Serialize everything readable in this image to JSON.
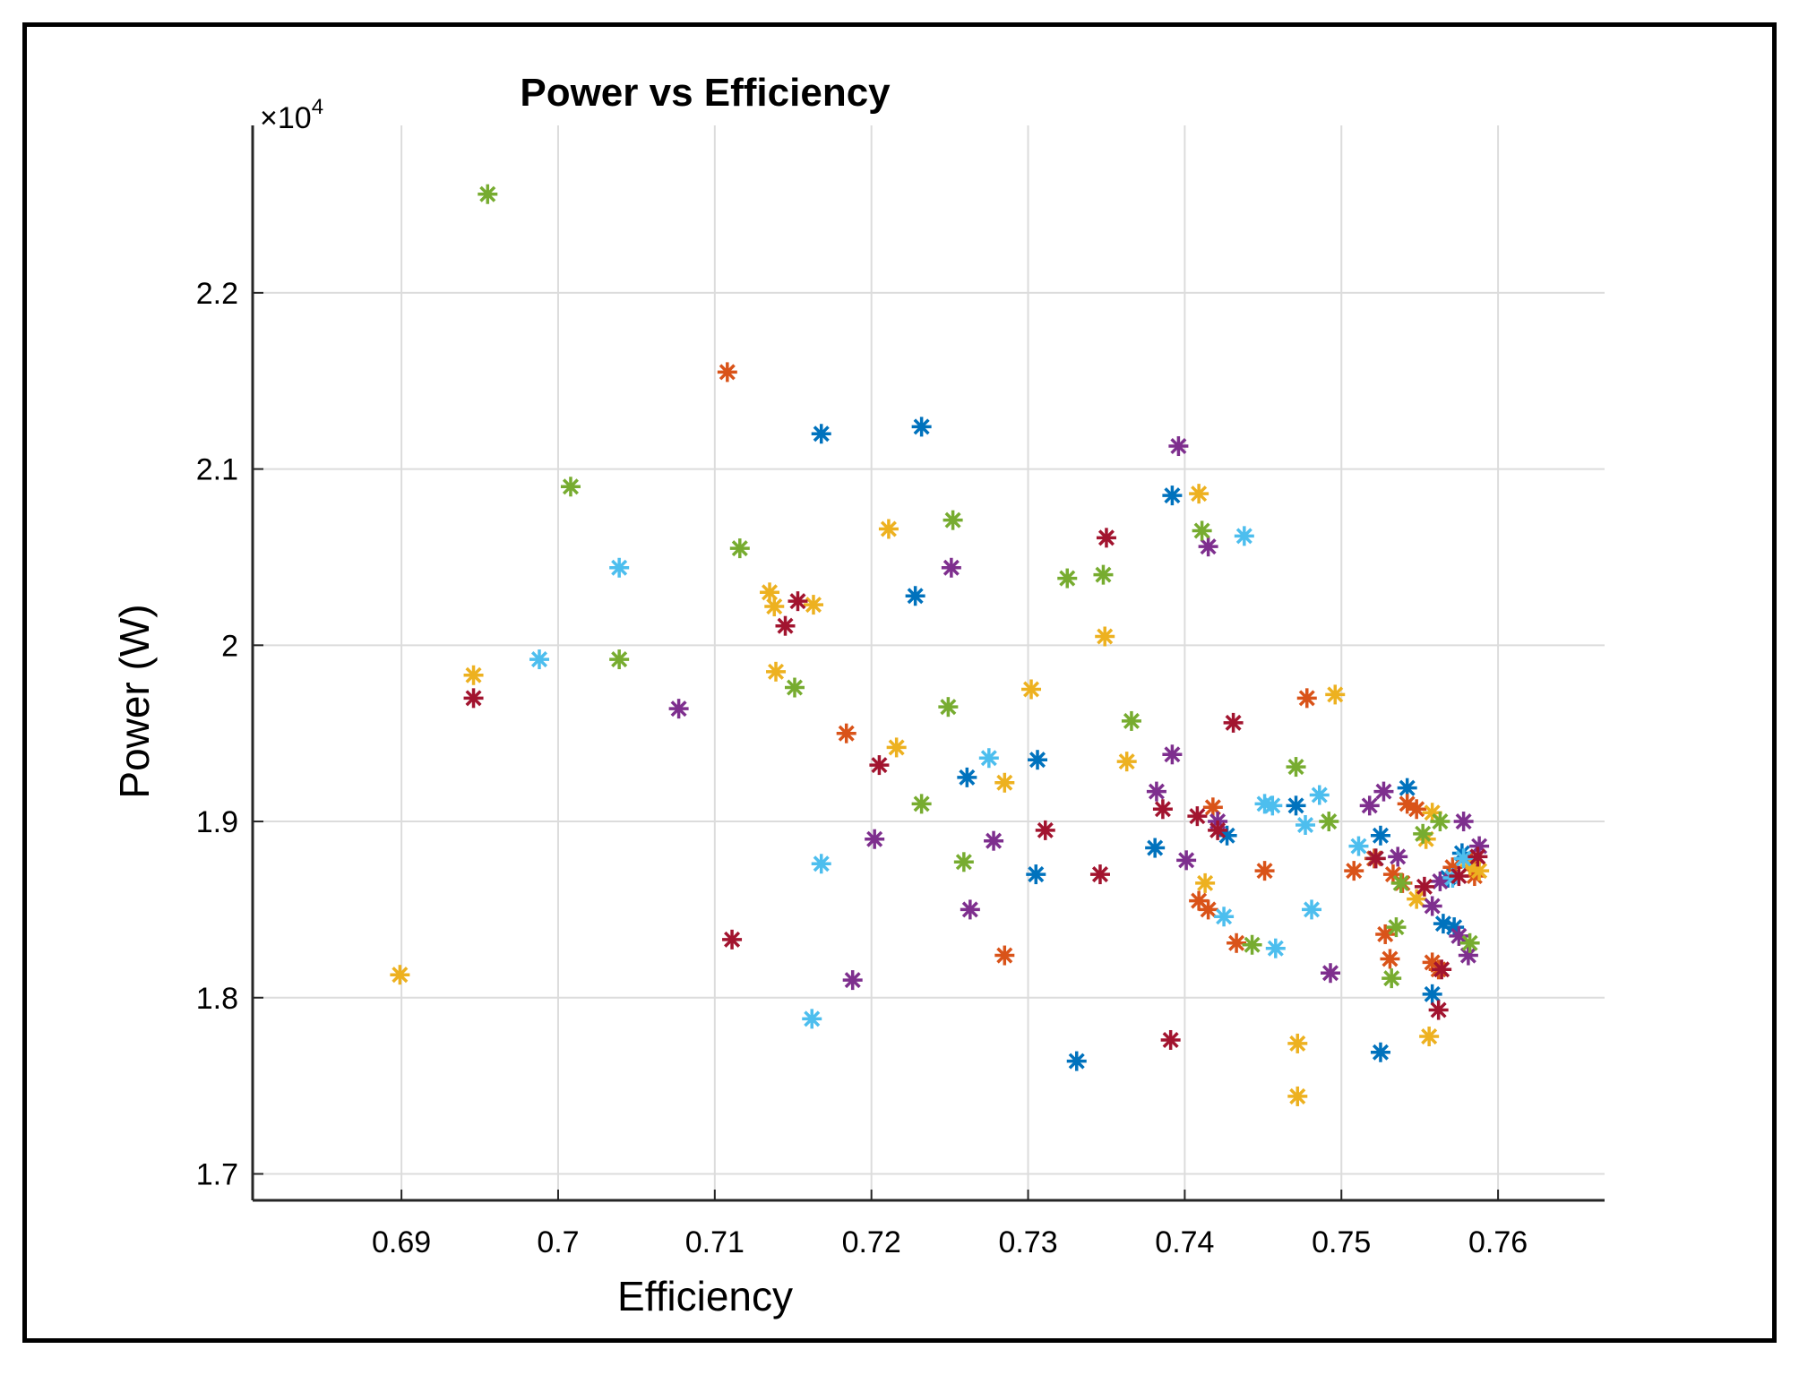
{
  "chart_data": {
    "type": "scatter",
    "title": "Power vs Efficiency",
    "xlabel": "Efficiency",
    "ylabel": "Power (W)",
    "xlim": [
      0.6805,
      0.7668
    ],
    "ylim": [
      16850,
      22950
    ],
    "xticks": [
      0.69,
      0.7,
      0.71,
      0.72,
      0.73,
      0.74,
      0.75,
      0.76
    ],
    "xtick_labels": [
      "0.69",
      "0.7",
      "0.71",
      "0.72",
      "0.73",
      "0.74",
      "0.75",
      "0.76"
    ],
    "yticks": [
      17000,
      18000,
      19000,
      20000,
      21000,
      22000
    ],
    "ytick_labels": [
      "1.7",
      "1.8",
      "1.9",
      "2",
      "2.1",
      "2.2"
    ],
    "y_exponent_label": "×10",
    "y_exponent_power": "4",
    "grid": true,
    "marker": "asterisk",
    "series": [
      {
        "name": "blue",
        "color": "#0072BD",
        "points": [
          [
            0.7168,
            21200
          ],
          [
            0.7232,
            21240
          ],
          [
            0.7228,
            20280
          ],
          [
            0.7261,
            19250
          ],
          [
            0.7306,
            19350
          ],
          [
            0.7305,
            18700
          ],
          [
            0.7331,
            17640
          ],
          [
            0.7381,
            18850
          ],
          [
            0.7392,
            20850
          ],
          [
            0.7427,
            18920
          ],
          [
            0.7471,
            19090
          ],
          [
            0.7525,
            18920
          ],
          [
            0.7542,
            19190
          ],
          [
            0.7568,
            18680
          ],
          [
            0.7558,
            18020
          ],
          [
            0.7565,
            18420
          ],
          [
            0.7525,
            17690
          ],
          [
            0.7577,
            18820
          ],
          [
            0.7572,
            18400
          ]
        ]
      },
      {
        "name": "orange",
        "color": "#D95319",
        "points": [
          [
            0.7108,
            21550
          ],
          [
            0.7184,
            19500
          ],
          [
            0.7285,
            18240
          ],
          [
            0.7409,
            18550
          ],
          [
            0.7418,
            19080
          ],
          [
            0.7415,
            18500
          ],
          [
            0.7433,
            18310
          ],
          [
            0.7451,
            18720
          ],
          [
            0.7478,
            19700
          ],
          [
            0.7508,
            18720
          ],
          [
            0.7521,
            18790
          ],
          [
            0.7528,
            18360
          ],
          [
            0.7531,
            18220
          ],
          [
            0.7533,
            18700
          ],
          [
            0.7539,
            18650
          ],
          [
            0.7542,
            19100
          ],
          [
            0.7548,
            19070
          ],
          [
            0.7558,
            18200
          ],
          [
            0.7562,
            18160
          ],
          [
            0.7571,
            18740
          ],
          [
            0.7583,
            18770
          ],
          [
            0.7585,
            18690
          ]
        ]
      },
      {
        "name": "yellow",
        "color": "#EDB120",
        "points": [
          [
            0.6899,
            18130
          ],
          [
            0.6946,
            19830
          ],
          [
            0.7135,
            20300
          ],
          [
            0.7138,
            20220
          ],
          [
            0.7139,
            19850
          ],
          [
            0.7163,
            20230
          ],
          [
            0.7211,
            20660
          ],
          [
            0.7216,
            19420
          ],
          [
            0.7285,
            19220
          ],
          [
            0.7302,
            19750
          ],
          [
            0.7349,
            20050
          ],
          [
            0.7363,
            19340
          ],
          [
            0.7409,
            20860
          ],
          [
            0.7413,
            18650
          ],
          [
            0.7472,
            17740
          ],
          [
            0.7472,
            17440
          ],
          [
            0.7496,
            19720
          ],
          [
            0.7548,
            18560
          ],
          [
            0.7554,
            18900
          ],
          [
            0.7556,
            17780
          ],
          [
            0.7558,
            19050
          ],
          [
            0.7582,
            18750
          ],
          [
            0.7588,
            18720
          ]
        ]
      },
      {
        "name": "purple",
        "color": "#7E2F8E",
        "points": [
          [
            0.7077,
            19640
          ],
          [
            0.7188,
            18100
          ],
          [
            0.7202,
            18900
          ],
          [
            0.7251,
            20440
          ],
          [
            0.7263,
            18500
          ],
          [
            0.7278,
            18890
          ],
          [
            0.7382,
            19170
          ],
          [
            0.7392,
            19380
          ],
          [
            0.7396,
            21130
          ],
          [
            0.7401,
            18780
          ],
          [
            0.7415,
            20560
          ],
          [
            0.7421,
            19000
          ],
          [
            0.7493,
            18140
          ],
          [
            0.7518,
            19090
          ],
          [
            0.7527,
            19170
          ],
          [
            0.7536,
            18800
          ],
          [
            0.7558,
            18520
          ],
          [
            0.7563,
            18660
          ],
          [
            0.7575,
            18350
          ],
          [
            0.7578,
            19000
          ],
          [
            0.7581,
            18240
          ],
          [
            0.7588,
            18860
          ]
        ]
      },
      {
        "name": "green",
        "color": "#77AC30",
        "points": [
          [
            0.6955,
            22560
          ],
          [
            0.7008,
            20900
          ],
          [
            0.7039,
            19920
          ],
          [
            0.7116,
            20550
          ],
          [
            0.7151,
            19760
          ],
          [
            0.7232,
            19100
          ],
          [
            0.7252,
            20710
          ],
          [
            0.7249,
            19650
          ],
          [
            0.7259,
            18770
          ],
          [
            0.7325,
            20380
          ],
          [
            0.7348,
            20400
          ],
          [
            0.7366,
            19570
          ],
          [
            0.7411,
            20650
          ],
          [
            0.7443,
            18300
          ],
          [
            0.7471,
            19310
          ],
          [
            0.7492,
            19000
          ],
          [
            0.7535,
            18400
          ],
          [
            0.7538,
            18650
          ],
          [
            0.7532,
            18110
          ],
          [
            0.7552,
            18930
          ],
          [
            0.7563,
            19000
          ],
          [
            0.7582,
            18310
          ]
        ]
      },
      {
        "name": "light-blue",
        "color": "#4DBEEE",
        "points": [
          [
            0.6988,
            19920
          ],
          [
            0.7039,
            20440
          ],
          [
            0.7162,
            17880
          ],
          [
            0.7168,
            18760
          ],
          [
            0.7275,
            19360
          ],
          [
            0.7425,
            18460
          ],
          [
            0.7438,
            20620
          ],
          [
            0.7451,
            19100
          ],
          [
            0.7456,
            19090
          ],
          [
            0.7458,
            18280
          ],
          [
            0.7477,
            18980
          ],
          [
            0.7481,
            18500
          ],
          [
            0.7486,
            19150
          ],
          [
            0.7511,
            18860
          ],
          [
            0.7522,
            18790
          ],
          [
            0.7571,
            18680
          ],
          [
            0.7578,
            18790
          ]
        ]
      },
      {
        "name": "dark-red",
        "color": "#A2142F",
        "points": [
          [
            0.6946,
            19700
          ],
          [
            0.7111,
            18330
          ],
          [
            0.7145,
            20110
          ],
          [
            0.7153,
            20250
          ],
          [
            0.7205,
            19320
          ],
          [
            0.7311,
            18950
          ],
          [
            0.7346,
            18700
          ],
          [
            0.735,
            20610
          ],
          [
            0.7391,
            17760
          ],
          [
            0.7386,
            19070
          ],
          [
            0.7408,
            19030
          ],
          [
            0.7421,
            18950
          ],
          [
            0.7431,
            19560
          ],
          [
            0.7522,
            18790
          ],
          [
            0.7553,
            18630
          ],
          [
            0.7562,
            17930
          ],
          [
            0.7564,
            18160
          ],
          [
            0.7575,
            18690
          ],
          [
            0.7587,
            18800
          ]
        ]
      }
    ]
  }
}
